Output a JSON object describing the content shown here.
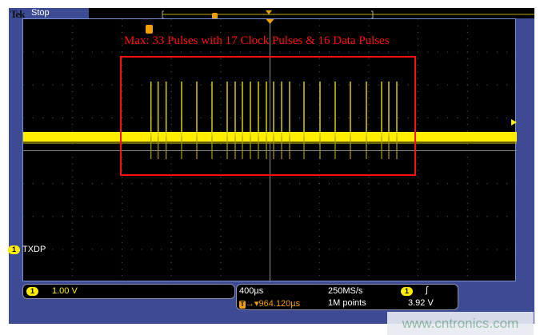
{
  "header": {
    "brand": "Tek",
    "status": "Stop"
  },
  "annotation": "Max: 33 Pulses with 17 Clock Pulses & 16 Data Pulses",
  "channel": {
    "number": "1",
    "label": "TXDP",
    "scale": "1.00 V",
    "color": "#ffee00"
  },
  "timebase": {
    "scale": "400µs",
    "trigger_position": "964.120µs",
    "sample_rate": "250MS/s",
    "record_length": "1M points"
  },
  "trigger": {
    "source": "1",
    "slope": "rising",
    "level": "3.92 V",
    "marker": "T",
    "color": "#f0a000"
  },
  "watermark": "www.cntronics.com",
  "colors": {
    "frame": "#3d4a94",
    "annotation": "#ff1010",
    "trace": "#ffee00"
  }
}
